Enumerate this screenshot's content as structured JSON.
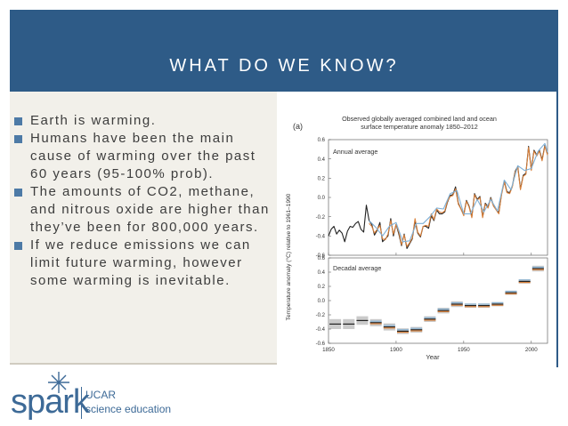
{
  "slide": {
    "title": "WHAT DO WE KNOW?",
    "bullets": [
      "Earth is warming.",
      "Humans have been the main cause of warming over the past 60 years (95-100% prob).",
      "The amounts of CO2, methane, and nitrous oxide are higher than they’ve been for 800,000 years.",
      "If we reduce emissions we can limit future warming, however some warming is inevitable."
    ],
    "colors": {
      "header": "#2e5b87",
      "panel": "#f2f0ea",
      "accent": "#4d7aa6"
    }
  },
  "logo": {
    "wordmark": "spark",
    "org": "UCAR",
    "tagline": "science education",
    "icon": "star-burst-icon"
  },
  "chart_data": {
    "type": "line",
    "panel_label": "(a)",
    "title": "Observed globally averaged combined land and ocean surface temperature anomaly 1850–2012",
    "ylabel": "Temperature anomaly (°C) relative to 1961–1990",
    "xlabel": "Year",
    "xlim": [
      1850,
      2012
    ],
    "x_ticks": [
      1850,
      1900,
      1950,
      2000
    ],
    "panels": [
      {
        "name": "Annual average",
        "ylim": [
          -0.6,
          0.6
        ],
        "y_ticks": [
          "0.6",
          "0.4",
          "0.2",
          "0.0",
          "-0.2",
          "-0.4",
          "-0.6"
        ],
        "series": [
          {
            "color": "#222222",
            "x": [
              1850,
              1852,
              1854,
              1856,
              1858,
              1860,
              1862,
              1864,
              1866,
              1868,
              1870,
              1872,
              1874,
              1876,
              1878,
              1880,
              1882,
              1884,
              1886,
              1888,
              1890,
              1892,
              1894,
              1896,
              1898,
              1900,
              1902,
              1904,
              1906,
              1908,
              1910,
              1912,
              1914,
              1916,
              1918,
              1920,
              1922,
              1924,
              1926,
              1928,
              1930,
              1932,
              1934,
              1936,
              1938,
              1940,
              1942,
              1944,
              1946,
              1948,
              1950,
              1952,
              1954,
              1956,
              1958,
              1960,
              1962,
              1964,
              1966,
              1968,
              1970,
              1972,
              1974,
              1976,
              1978,
              1980,
              1982,
              1984,
              1986,
              1988,
              1990,
              1992,
              1994,
              1996,
              1998,
              2000,
              2002,
              2004,
              2006,
              2008,
              2010,
              2012
            ],
            "values": [
              -0.4,
              -0.33,
              -0.3,
              -0.38,
              -0.34,
              -0.37,
              -0.46,
              -0.35,
              -0.3,
              -0.31,
              -0.27,
              -0.25,
              -0.33,
              -0.36,
              -0.08,
              -0.24,
              -0.28,
              -0.39,
              -0.34,
              -0.26,
              -0.46,
              -0.43,
              -0.4,
              -0.22,
              -0.4,
              -0.28,
              -0.38,
              -0.5,
              -0.38,
              -0.53,
              -0.48,
              -0.43,
              -0.24,
              -0.37,
              -0.41,
              -0.3,
              -0.3,
              -0.32,
              -0.19,
              -0.24,
              -0.13,
              -0.17,
              -0.17,
              -0.15,
              -0.05,
              0.02,
              0.03,
              0.11,
              -0.06,
              -0.12,
              -0.18,
              -0.03,
              -0.09,
              -0.2,
              0.04,
              -0.02,
              0.01,
              -0.2,
              -0.06,
              -0.1,
              0.0,
              -0.08,
              -0.12,
              -0.16,
              0.04,
              0.17,
              0.06,
              0.05,
              0.12,
              0.27,
              0.32,
              0.09,
              0.23,
              0.25,
              0.53,
              0.29,
              0.49,
              0.44,
              0.49,
              0.39,
              0.54,
              0.45
            ]
          },
          {
            "color": "#d9803a",
            "x": [
              1880,
              1882,
              1884,
              1886,
              1888,
              1890,
              1892,
              1894,
              1896,
              1898,
              1900,
              1902,
              1904,
              1906,
              1908,
              1910,
              1912,
              1914,
              1916,
              1918,
              1920,
              1922,
              1924,
              1926,
              1928,
              1930,
              1932,
              1934,
              1936,
              1938,
              1940,
              1942,
              1944,
              1946,
              1948,
              1950,
              1952,
              1954,
              1956,
              1958,
              1960,
              1962,
              1964,
              1966,
              1968,
              1970,
              1972,
              1974,
              1976,
              1978,
              1980,
              1982,
              1984,
              1986,
              1988,
              1990,
              1992,
              1994,
              1996,
              1998,
              2000,
              2002,
              2004,
              2006,
              2008,
              2010,
              2012
            ],
            "values": [
              -0.27,
              -0.3,
              -0.37,
              -0.33,
              -0.29,
              -0.43,
              -0.44,
              -0.38,
              -0.24,
              -0.38,
              -0.28,
              -0.36,
              -0.49,
              -0.39,
              -0.51,
              -0.47,
              -0.42,
              -0.22,
              -0.36,
              -0.4,
              -0.3,
              -0.29,
              -0.3,
              -0.17,
              -0.23,
              -0.12,
              -0.15,
              -0.16,
              -0.14,
              -0.04,
              0.01,
              0.02,
              0.09,
              -0.07,
              -0.12,
              -0.19,
              -0.04,
              -0.1,
              -0.21,
              0.03,
              -0.03,
              0.0,
              -0.21,
              -0.07,
              -0.11,
              -0.01,
              -0.09,
              -0.13,
              -0.17,
              0.03,
              0.16,
              0.05,
              0.04,
              0.11,
              0.26,
              0.31,
              0.08,
              0.22,
              0.24,
              0.52,
              0.28,
              0.48,
              0.43,
              0.48,
              0.38,
              0.53,
              0.44
            ]
          },
          {
            "color": "#7fb0d6",
            "x": [
              1880,
              1885,
              1890,
              1895,
              1900,
              1905,
              1910,
              1915,
              1920,
              1925,
              1930,
              1935,
              1940,
              1945,
              1950,
              1955,
              1960,
              1965,
              1970,
              1975,
              1980,
              1985,
              1990,
              1995,
              2000,
              2005,
              2010,
              2012
            ],
            "values": [
              -0.24,
              -0.31,
              -0.4,
              -0.3,
              -0.26,
              -0.46,
              -0.45,
              -0.27,
              -0.27,
              -0.2,
              -0.11,
              -0.12,
              0.04,
              0.07,
              -0.17,
              -0.17,
              -0.02,
              -0.15,
              -0.02,
              -0.14,
              0.18,
              0.08,
              0.33,
              0.28,
              0.3,
              0.48,
              0.56,
              0.47
            ]
          }
        ]
      },
      {
        "name": "Decadal average",
        "ylim": [
          -0.6,
          0.6
        ],
        "y_ticks": [
          "0.6",
          "0.4",
          "0.2",
          "0.0",
          "-0.2",
          "-0.4",
          "-0.6"
        ],
        "decades": [
          1855,
          1865,
          1875,
          1885,
          1895,
          1905,
          1915,
          1925,
          1935,
          1945,
          1955,
          1965,
          1975,
          1985,
          1995,
          2005
        ],
        "values": [
          -0.33,
          -0.33,
          -0.28,
          -0.31,
          -0.37,
          -0.43,
          -0.41,
          -0.26,
          -0.14,
          -0.05,
          -0.07,
          -0.07,
          -0.05,
          0.11,
          0.27,
          0.45
        ],
        "uncertainty": [
          0.07,
          0.07,
          0.06,
          0.05,
          0.05,
          0.04,
          0.04,
          0.04,
          0.04,
          0.04,
          0.03,
          0.03,
          0.03,
          0.03,
          0.03,
          0.04
        ],
        "series_colors": [
          "#222222",
          "#d9803a",
          "#7fb0d6"
        ]
      }
    ]
  }
}
